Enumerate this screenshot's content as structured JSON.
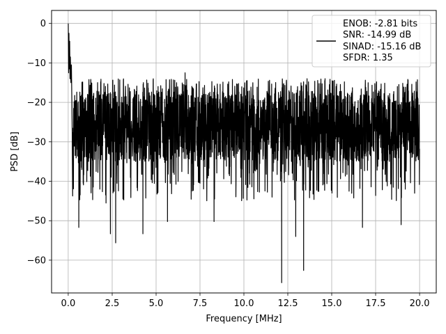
{
  "chart_data": {
    "type": "line",
    "xlabel": "Frequency [MHz]",
    "ylabel": "PSD [dB]",
    "xlim": [
      -0.95,
      20.95
    ],
    "ylim": [
      -68.3,
      3.3
    ],
    "xticks": [
      0.0,
      2.5,
      5.0,
      7.5,
      10.0,
      12.5,
      15.0,
      17.5,
      20.0
    ],
    "xtick_labels": [
      "0.0",
      "2.5",
      "5.0",
      "7.5",
      "10.0",
      "12.5",
      "15.0",
      "17.5",
      "20.0"
    ],
    "yticks": [
      0,
      -10,
      -20,
      -30,
      -40,
      -50,
      -60
    ],
    "ytick_labels": [
      "0",
      "−10",
      "−20",
      "−30",
      "−40",
      "−50",
      "−60"
    ],
    "grid": true,
    "legend_position": "top-right",
    "line_color": "#000000",
    "legend_lines": [
      "ENOB: -2.81 bits",
      "SNR: -14.99 dB",
      "SINAD: -15.16 dB",
      "SFDR: 1.35"
    ],
    "series": [
      {
        "points": [
          [
            0.0,
            0.0
          ],
          [
            0.02,
            -12.5
          ],
          [
            0.04,
            -2.5
          ],
          [
            0.06,
            -11.5
          ],
          [
            0.08,
            -4.5
          ],
          [
            0.1,
            -14.0
          ],
          [
            0.12,
            -8.5
          ],
          [
            0.15,
            -15.0
          ],
          [
            0.18,
            -10.5
          ],
          [
            0.22,
            -25.0
          ],
          [
            0.3,
            -32.0
          ],
          [
            0.6,
            -51.7
          ],
          [
            0.85,
            -40.5
          ],
          [
            2.15,
            -45.5
          ],
          [
            2.4,
            -53.3
          ],
          [
            2.7,
            -55.6
          ],
          [
            4.25,
            -53.3
          ],
          [
            5.65,
            -50.2
          ],
          [
            6.65,
            -12.5
          ],
          [
            8.3,
            -50.2
          ],
          [
            12.15,
            -65.7
          ],
          [
            12.95,
            -54.0
          ],
          [
            13.4,
            -62.6
          ],
          [
            16.75,
            -51.7
          ],
          [
            18.95,
            -51.0
          ]
        ],
        "noise_band": {
          "top": -17.0,
          "bottom": -35.0,
          "spike_top": -14.0,
          "spike_bottom": -45.0
        }
      }
    ]
  }
}
